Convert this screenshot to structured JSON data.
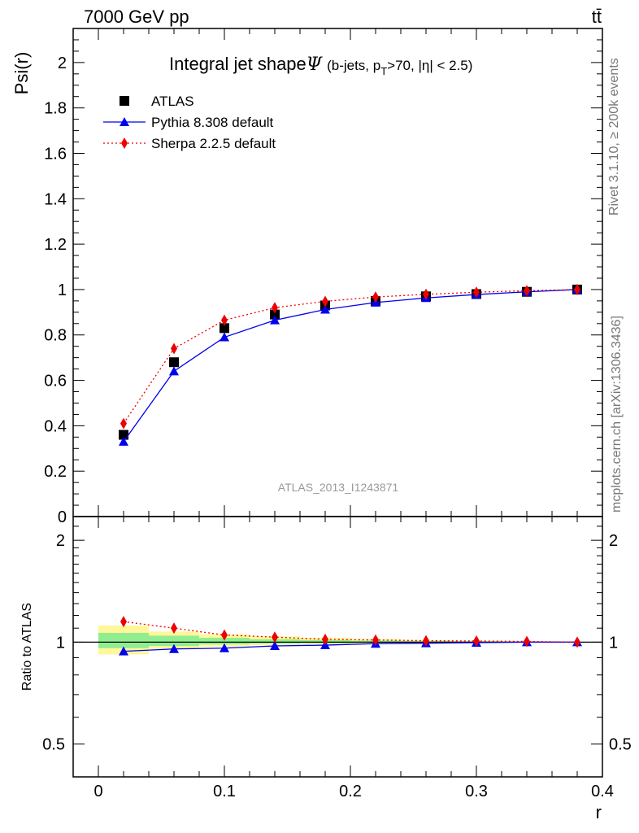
{
  "header": {
    "energy_label": "7000 GeV pp",
    "process_label": "tt̄"
  },
  "side": {
    "rivet_label": "Rivet 3.1.10, ≥ 200k events",
    "source_label": "mcplots.cern.ch [arXiv:1306.3436]"
  },
  "chart_data": [
    {
      "type": "scatter",
      "panel": "main",
      "title_main": "Integral jet shape",
      "title_symbol": "Ψ",
      "title_cuts_a": "(b-jets, p",
      "title_cuts_sub": "T",
      "title_cuts_b": ">70, |η| < 2.5)",
      "watermark": "ATLAS_2013_I1243871",
      "ylabel": "Psi(r)",
      "xlim": [
        -0.02,
        0.4
      ],
      "ylim": [
        0,
        2.15
      ],
      "xticks": [
        0,
        0.1,
        0.2,
        0.3,
        0.4
      ],
      "xtick_labels": [
        "0",
        "0.1",
        "0.2",
        "0.3",
        "0.4"
      ],
      "yticks": [
        0,
        0.2,
        0.4,
        0.6,
        0.8,
        1,
        1.2,
        1.4,
        1.6,
        1.8,
        2
      ],
      "ytick_labels": [
        "0",
        "0.2",
        "0.4",
        "0.6",
        "0.8",
        "1",
        "1.2",
        "1.4",
        "1.6",
        "1.8",
        "2"
      ],
      "legend_position": "top-left",
      "x": [
        0.02,
        0.06,
        0.1,
        0.14,
        0.18,
        0.22,
        0.26,
        0.3,
        0.34,
        0.38
      ],
      "series": [
        {
          "name": "ATLAS",
          "marker": "square",
          "color": "#000000",
          "line": "none",
          "values": [
            0.36,
            0.68,
            0.83,
            0.89,
            0.93,
            0.95,
            0.97,
            0.98,
            0.99,
            1.0
          ]
        },
        {
          "name": "Pythia 8.308 default",
          "marker": "triangle",
          "color": "#0000ee",
          "line": "solid",
          "values": [
            0.33,
            0.64,
            0.79,
            0.865,
            0.912,
            0.943,
            0.963,
            0.978,
            0.99,
            1.0
          ]
        },
        {
          "name": "Sherpa 2.2.5 default",
          "marker": "diamond",
          "color": "#ee0000",
          "line": "dotted",
          "values": [
            0.41,
            0.74,
            0.865,
            0.92,
            0.948,
            0.967,
            0.979,
            0.988,
            0.995,
            1.0
          ]
        }
      ]
    },
    {
      "type": "scatter",
      "panel": "ratio",
      "ylabel": "Ratio to ATLAS",
      "xlabel": "r",
      "xlim": [
        -0.02,
        0.4
      ],
      "ylim": [
        0.4,
        2.35
      ],
      "log_y": true,
      "xticks": [
        0,
        0.1,
        0.2,
        0.3,
        0.4
      ],
      "xtick_labels": [
        "0",
        "0.1",
        "0.2",
        "0.3",
        "0.4"
      ],
      "yticks": [
        0.5,
        1,
        2
      ],
      "ytick_labels": [
        "0.5",
        "1",
        "2"
      ],
      "uncertainty_bands": {
        "bin_edges": [
          0.0,
          0.04,
          0.08,
          0.12,
          0.16,
          0.2,
          0.24,
          0.28,
          0.32,
          0.36,
          0.4
        ],
        "outer_low": [
          0.92,
          0.955,
          0.97,
          0.98,
          0.985,
          0.99,
          0.993,
          0.996,
          0.998,
          1.0
        ],
        "outer_high": [
          1.12,
          1.075,
          1.055,
          1.04,
          1.03,
          1.022,
          1.015,
          1.01,
          1.005,
          1.0
        ],
        "inner_low": [
          0.96,
          0.975,
          0.985,
          0.99,
          0.993,
          0.995,
          0.997,
          0.998,
          0.999,
          1.0
        ],
        "inner_high": [
          1.065,
          1.045,
          1.03,
          1.02,
          1.015,
          1.01,
          1.007,
          1.004,
          1.002,
          1.0
        ],
        "outer_color": "#fff79a",
        "inner_color": "#90ee90"
      },
      "x": [
        0.02,
        0.06,
        0.1,
        0.14,
        0.18,
        0.22,
        0.26,
        0.3,
        0.34,
        0.38
      ],
      "series": [
        {
          "name": "Pythia 8.308 default",
          "marker": "triangle",
          "color": "#0000ee",
          "line": "solid",
          "values": [
            0.94,
            0.955,
            0.96,
            0.975,
            0.98,
            0.99,
            0.993,
            0.997,
            1.0,
            1.0
          ]
        },
        {
          "name": "Sherpa 2.2.5 default",
          "marker": "diamond",
          "color": "#ee0000",
          "line": "dotted",
          "values": [
            1.15,
            1.1,
            1.05,
            1.035,
            1.02,
            1.015,
            1.01,
            1.008,
            1.005,
            1.0
          ]
        }
      ]
    }
  ]
}
